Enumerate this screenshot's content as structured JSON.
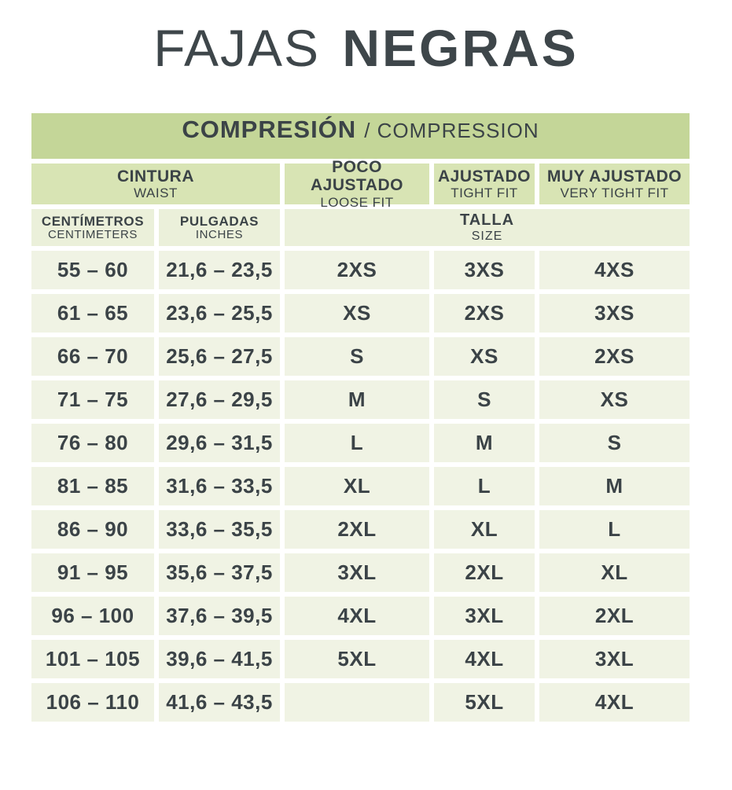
{
  "title": {
    "light": "FAJAS",
    "bold": "NEGRAS"
  },
  "table": {
    "banner": {
      "es": "COMPRESIÓN",
      "en": "/ COMPRESSION"
    },
    "headers": {
      "cintura": {
        "es": "CINTURA",
        "en": "WAIST"
      },
      "loose": {
        "es": "POCO AJUSTADO",
        "en": "LOOSE FIT"
      },
      "tight": {
        "es": "AJUSTADO",
        "en": "TIGHT FIT"
      },
      "very_tight": {
        "es": "MUY AJUSTADO",
        "en": "VERY TIGHT FIT"
      },
      "cm": {
        "es": "CENTÍMETROS",
        "en": "CENTIMETERS"
      },
      "inch": {
        "es": "PULGADAS",
        "en": "INCHES"
      },
      "talla": {
        "es": "TALLA",
        "en": "SIZE"
      }
    },
    "rows": [
      {
        "cm": "55 – 60",
        "inches": "21,6 – 23,5",
        "loose": "2XS",
        "tight": "3XS",
        "very_tight": "4XS"
      },
      {
        "cm": "61 – 65",
        "inches": "23,6 – 25,5",
        "loose": "XS",
        "tight": "2XS",
        "very_tight": "3XS"
      },
      {
        "cm": "66 – 70",
        "inches": "25,6 – 27,5",
        "loose": "S",
        "tight": "XS",
        "very_tight": "2XS"
      },
      {
        "cm": "71 – 75",
        "inches": "27,6 – 29,5",
        "loose": "M",
        "tight": "S",
        "very_tight": "XS"
      },
      {
        "cm": "76 – 80",
        "inches": "29,6 – 31,5",
        "loose": "L",
        "tight": "M",
        "very_tight": "S"
      },
      {
        "cm": "81 – 85",
        "inches": "31,6 – 33,5",
        "loose": "XL",
        "tight": "L",
        "very_tight": "M"
      },
      {
        "cm": "86 – 90",
        "inches": "33,6 – 35,5",
        "loose": "2XL",
        "tight": "XL",
        "very_tight": "L"
      },
      {
        "cm": "91 – 95",
        "inches": "35,6 – 37,5",
        "loose": "3XL",
        "tight": "2XL",
        "very_tight": "XL"
      },
      {
        "cm": "96 – 100",
        "inches": "37,6 – 39,5",
        "loose": "4XL",
        "tight": "3XL",
        "very_tight": "2XL"
      },
      {
        "cm": "101 – 105",
        "inches": "39,6 – 41,5",
        "loose": "5XL",
        "tight": "4XL",
        "very_tight": "3XL"
      },
      {
        "cm": "106 – 110",
        "inches": "41,6 – 43,5",
        "loose": "",
        "tight": "5XL",
        "very_tight": "4XL"
      }
    ]
  },
  "colors": {
    "banner_green": "#c4d698",
    "subheader_green": "#d8e4b4",
    "unit_green": "#ebf0da",
    "cell_green": "#f0f3e4",
    "text": "#3b4347"
  },
  "chart_data": {
    "type": "table",
    "title": "FAJAS NEGRAS",
    "subtitle": "COMPRESIÓN / COMPRESSION",
    "columns": [
      "CINTURA CENTÍMETROS (WAIST CENTIMETERS)",
      "CINTURA PULGADAS (WAIST INCHES)",
      "TALLA POCO AJUSTADO (SIZE LOOSE FIT)",
      "TALLA AJUSTADO (SIZE TIGHT FIT)",
      "TALLA MUY AJUSTADO (SIZE VERY TIGHT FIT)"
    ],
    "rows": [
      [
        "55 – 60",
        "21,6 – 23,5",
        "2XS",
        "3XS",
        "4XS"
      ],
      [
        "61 – 65",
        "23,6 – 25,5",
        "XS",
        "2XS",
        "3XS"
      ],
      [
        "66 – 70",
        "25,6 – 27,5",
        "S",
        "XS",
        "2XS"
      ],
      [
        "71 – 75",
        "27,6 – 29,5",
        "M",
        "S",
        "XS"
      ],
      [
        "76 – 80",
        "29,6 – 31,5",
        "L",
        "M",
        "S"
      ],
      [
        "81 – 85",
        "31,6 – 33,5",
        "XL",
        "L",
        "M"
      ],
      [
        "86 – 90",
        "33,6 – 35,5",
        "2XL",
        "XL",
        "L"
      ],
      [
        "91 – 95",
        "35,6 – 37,5",
        "3XL",
        "2XL",
        "XL"
      ],
      [
        "96 – 100",
        "37,6 – 39,5",
        "4XL",
        "3XL",
        "2XL"
      ],
      [
        "101 – 105",
        "39,6 – 41,5",
        "5XL",
        "4XL",
        "3XL"
      ],
      [
        "106 – 110",
        "41,6 – 43,5",
        "",
        "5XL",
        "4XL"
      ]
    ],
    "layout": {
      "grid": "white gutters between cells",
      "legend_position": "none"
    }
  }
}
